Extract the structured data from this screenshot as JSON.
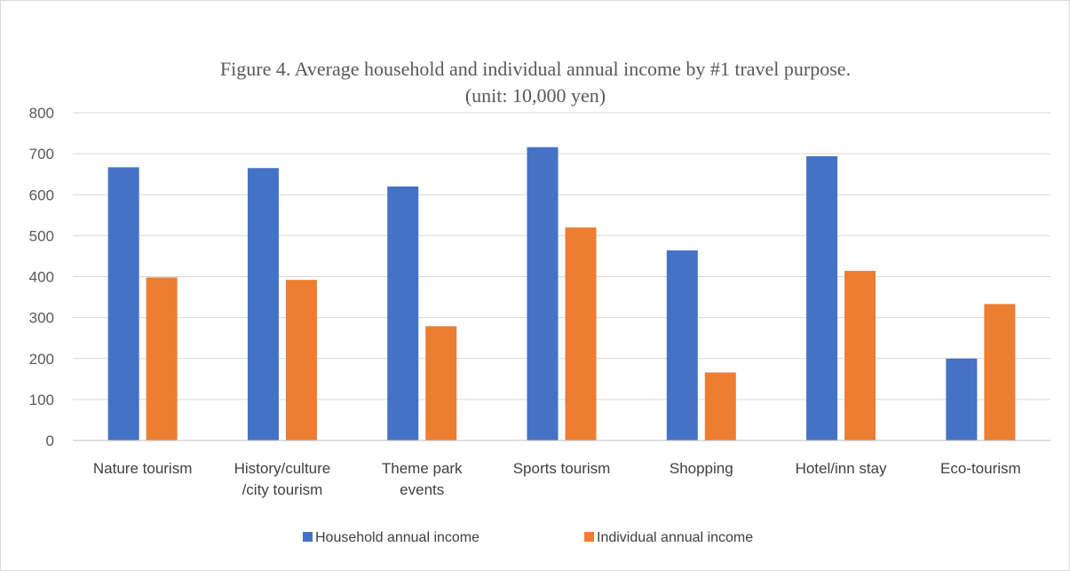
{
  "chart_data": {
    "type": "bar",
    "title": "Figure 4. Average household and individual annual income by #1 travel purpose.",
    "subtitle": "(unit: 10,000 yen)",
    "xlabel": "",
    "ylabel": "",
    "ylim": [
      0,
      800
    ],
    "yticks": [
      "0",
      "100",
      "200",
      "300",
      "400",
      "500",
      "600",
      "700",
      "800"
    ],
    "grid": true,
    "legend_position": "bottom",
    "categories": [
      [
        "Nature tourism"
      ],
      [
        "History/culture",
        "/city tourism"
      ],
      [
        "Theme park",
        "events"
      ],
      [
        "Sports tourism"
      ],
      [
        "Shopping"
      ],
      [
        "Hotel/inn stay"
      ],
      [
        "Eco-tourism"
      ]
    ],
    "series": [
      {
        "name": "Household annual income",
        "color": "#4472c4",
        "values": [
          667,
          665,
          620,
          716,
          464,
          694,
          200
        ]
      },
      {
        "name": "Individual annual income",
        "color": "#ed7d31",
        "values": [
          398,
          392,
          279,
          520,
          166,
          414,
          333
        ]
      }
    ]
  }
}
